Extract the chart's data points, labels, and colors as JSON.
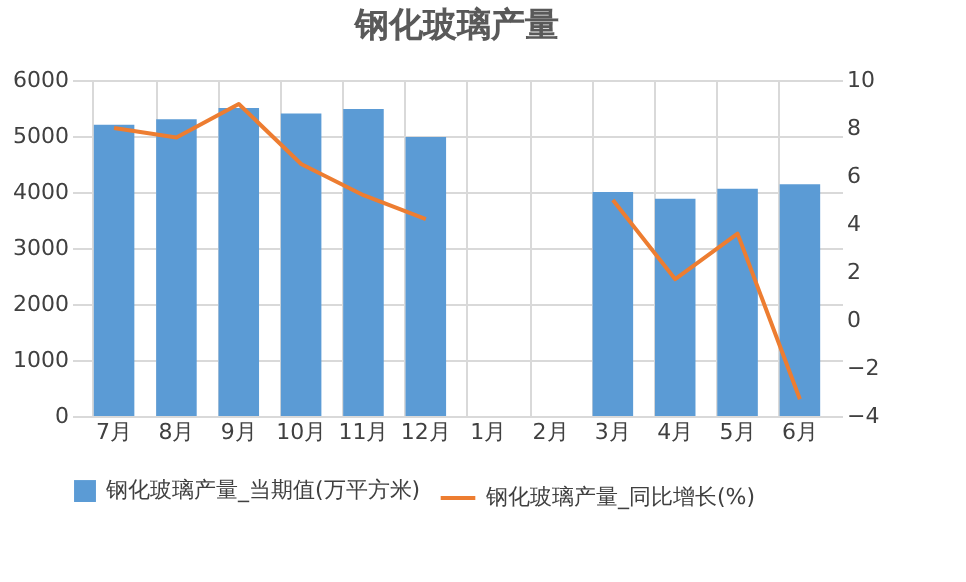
{
  "chart_data": {
    "type": "bar",
    "title": "钢化玻璃产量",
    "categories": [
      "7月",
      "8月",
      "9月",
      "10月",
      "11月",
      "12月",
      "1月",
      "2月",
      "3月",
      "4月",
      "5月",
      "6月"
    ],
    "series": [
      {
        "name": "钢化玻璃产量_当期值(万平方米)",
        "color": "#5b9bd5",
        "values": [
          5200,
          5300,
          5500,
          5400,
          5480,
          4980,
          null,
          null,
          4000,
          3880,
          4060,
          4140
        ]
      },
      {
        "name": "钢化玻璃产量_同比增长(%)",
        "type": "line",
        "axis": "y2",
        "color": "#ed7d31",
        "values": [
          8.0,
          7.6,
          9.0,
          6.5,
          5.2,
          4.2,
          null,
          null,
          5.0,
          1.7,
          3.6,
          -3.3
        ]
      }
    ],
    "ylim": [
      0,
      6000
    ],
    "yticks": [
      0,
      1000,
      2000,
      3000,
      4000,
      5000,
      6000
    ],
    "y2lim": [
      -4,
      10
    ],
    "y2ticks": [
      -4,
      -2,
      0,
      2,
      4,
      6,
      8,
      10
    ],
    "grid": true,
    "legend": "bottom"
  }
}
